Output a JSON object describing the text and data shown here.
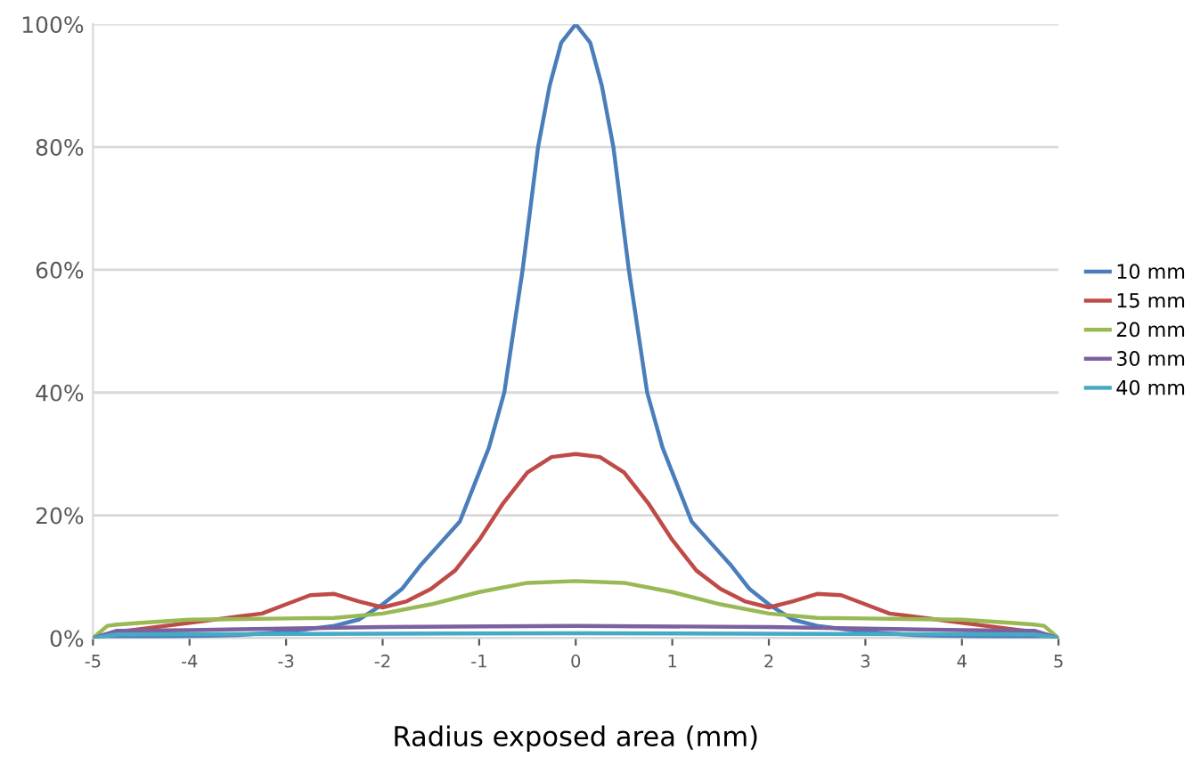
{
  "chart_data": {
    "type": "line",
    "xlabel": "Radius exposed area (mm)",
    "xlim": [
      -5,
      5
    ],
    "xticks": [
      -5,
      -4,
      -3,
      -2,
      -1,
      0,
      1,
      2,
      3,
      4,
      5
    ],
    "ylim": [
      0,
      100
    ],
    "yticks": [
      {
        "value": 0,
        "label": "0%"
      },
      {
        "value": 20,
        "label": "20%"
      },
      {
        "value": 40,
        "label": "40%"
      },
      {
        "value": 60,
        "label": "60%"
      },
      {
        "value": 80,
        "label": "80%"
      },
      {
        "value": 100,
        "label": "100%"
      }
    ],
    "grid": "y",
    "legend": "right",
    "marker": "none",
    "line_style": "solid",
    "series": [
      {
        "name": "10 mm",
        "color": "#4a7ebb",
        "x": [
          -5,
          -4.5,
          -4,
          -3.5,
          -3,
          -2.5,
          -2.25,
          -2,
          -1.8,
          -1.6,
          -1.4,
          -1.2,
          -1.05,
          -0.9,
          -0.74,
          -0.55,
          -0.39,
          -0.27,
          -0.15,
          0,
          0.15,
          0.27,
          0.39,
          0.55,
          0.74,
          0.9,
          1.05,
          1.2,
          1.4,
          1.6,
          1.8,
          2,
          2.25,
          2.5,
          3,
          3.5,
          4,
          4.5,
          5
        ],
        "values": [
          0,
          0.2,
          0.3,
          0.5,
          1,
          2,
          3,
          5.5,
          8,
          12,
          15.5,
          19,
          25,
          31,
          40,
          60,
          80,
          90,
          97,
          100,
          97,
          90,
          80,
          60,
          40,
          31,
          25,
          19,
          15.5,
          12,
          8,
          5.5,
          3,
          2,
          1,
          0.5,
          0.3,
          0.2,
          0
        ]
      },
      {
        "name": "15 mm",
        "color": "#be4b48",
        "x": [
          -5,
          -4.75,
          -4.5,
          -4,
          -3.5,
          -3.25,
          -3,
          -2.75,
          -2.5,
          -2.25,
          -2,
          -1.75,
          -1.5,
          -1.25,
          -1,
          -0.75,
          -0.5,
          -0.25,
          0,
          0.25,
          0.5,
          0.75,
          1,
          1.25,
          1.5,
          1.75,
          2,
          2.25,
          2.5,
          2.75,
          3,
          3.25,
          3.5,
          4,
          4.5,
          4.75,
          5
        ],
        "values": [
          0,
          1,
          1.5,
          2.5,
          3.5,
          4,
          5.5,
          7,
          7.2,
          6,
          5,
          6,
          8,
          11,
          16,
          22,
          27,
          29.5,
          30,
          29.5,
          27,
          22,
          16,
          11,
          8,
          6,
          5,
          6,
          7.2,
          7,
          5.5,
          4,
          3.5,
          2.5,
          1.5,
          1,
          0
        ]
      },
      {
        "name": "20 mm",
        "color": "#98b954",
        "x": [
          -5,
          -4.85,
          -4.75,
          -4.5,
          -4,
          -3,
          -2.5,
          -2,
          -1.5,
          -1,
          -0.5,
          0,
          0.5,
          1,
          1.5,
          2,
          2.5,
          3,
          4,
          4.5,
          4.75,
          4.85,
          5
        ],
        "values": [
          0,
          2,
          2.2,
          2.5,
          3,
          3.2,
          3.3,
          4,
          5.5,
          7.5,
          9,
          9.3,
          9,
          7.5,
          5.5,
          4,
          3.3,
          3.2,
          3,
          2.5,
          2.2,
          2,
          0
        ]
      },
      {
        "name": "30 mm",
        "color": "#7d60a0",
        "x": [
          -5,
          -4.75,
          -4,
          -2,
          0,
          2,
          4,
          4.75,
          5
        ],
        "values": [
          0,
          1.2,
          1.3,
          1.8,
          2,
          1.8,
          1.3,
          1.2,
          0
        ]
      },
      {
        "name": "40 mm",
        "color": "#46aac5",
        "x": [
          -5,
          -4.75,
          0,
          4.75,
          5
        ],
        "values": [
          0,
          0.6,
          0.8,
          0.6,
          0
        ]
      }
    ]
  }
}
